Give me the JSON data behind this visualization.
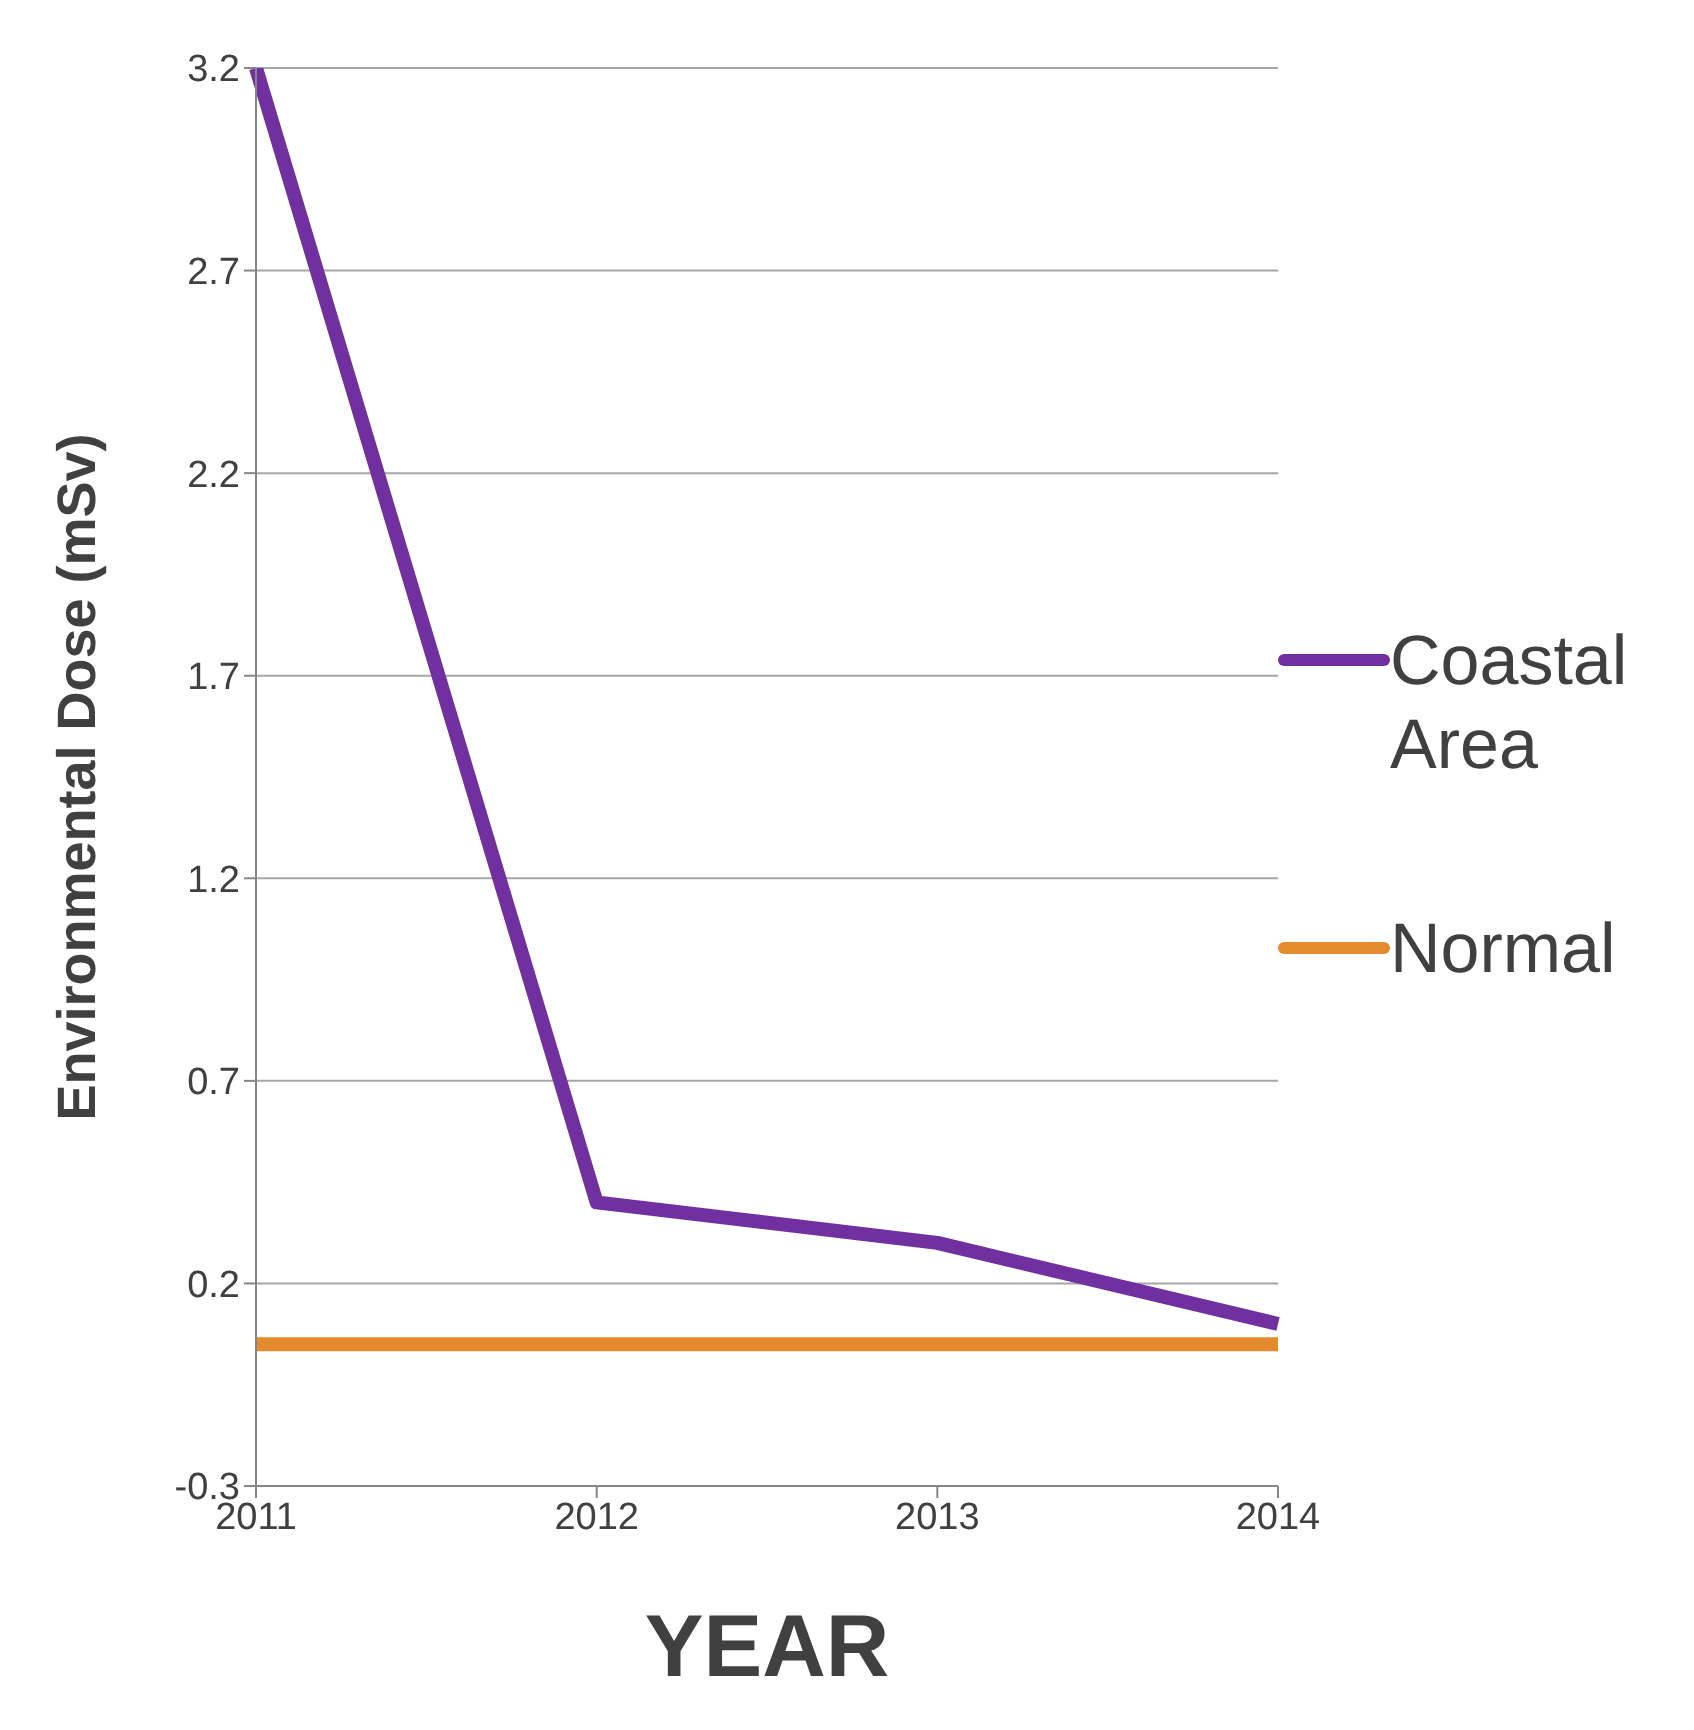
{
  "chart_data": {
    "type": "line",
    "xlabel": "YEAR",
    "ylabel": "Environmental Dose (mSv)",
    "categories": [
      "2011",
      "2012",
      "2013",
      "2014"
    ],
    "series": [
      {
        "name": "Coastal Area",
        "color": "#7030a0",
        "values": [
          3.2,
          0.4,
          0.3,
          0.1
        ]
      },
      {
        "name": "Normal",
        "color": "#e38b2e",
        "values": [
          0.05,
          0.05,
          0.05,
          0.05
        ]
      }
    ],
    "ylim": [
      -0.3,
      3.2
    ],
    "yticks": [
      -0.3,
      0.2,
      0.7,
      1.2,
      1.7,
      2.2,
      2.7,
      3.2
    ],
    "grid": "y",
    "legend": "right",
    "marker": "none",
    "line_style": "solid"
  }
}
